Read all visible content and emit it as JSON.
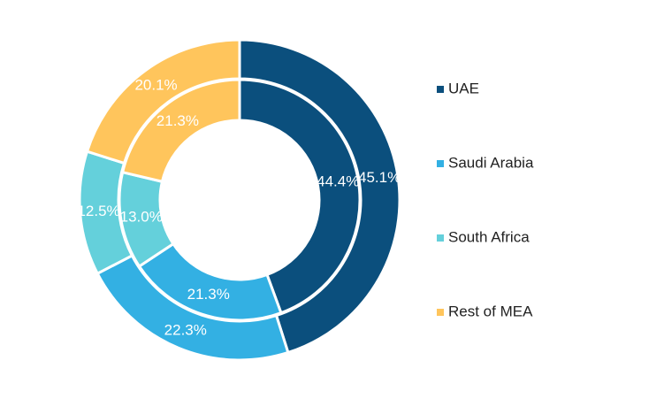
{
  "chart_data": {
    "type": "pie",
    "subtype": "double-donut",
    "title": "",
    "categories": [
      "UAE",
      "Saudi Arabia",
      "South Africa",
      "Rest of MEA"
    ],
    "colors": [
      "#0b4f7d",
      "#33b0e3",
      "#64d0db",
      "#ffc55c"
    ],
    "series": [
      {
        "ring": "outer",
        "values": [
          45.1,
          22.3,
          12.5,
          20.1
        ],
        "labels": [
          "45.1%",
          "22.3%",
          "12.5%",
          "20.1%"
        ]
      },
      {
        "ring": "inner",
        "values": [
          44.4,
          21.3,
          13.0,
          21.3
        ],
        "labels": [
          "44.4%",
          "21.3%",
          "13.0%",
          "21.3%"
        ]
      }
    ],
    "legend": {
      "position": "right",
      "items": [
        {
          "label": "UAE",
          "color": "#0b4f7d"
        },
        {
          "label": "Saudi Arabia",
          "color": "#33b0e3"
        },
        {
          "label": "South Africa",
          "color": "#64d0db"
        },
        {
          "label": "Rest of MEA",
          "color": "#ffc55c"
        }
      ]
    }
  }
}
